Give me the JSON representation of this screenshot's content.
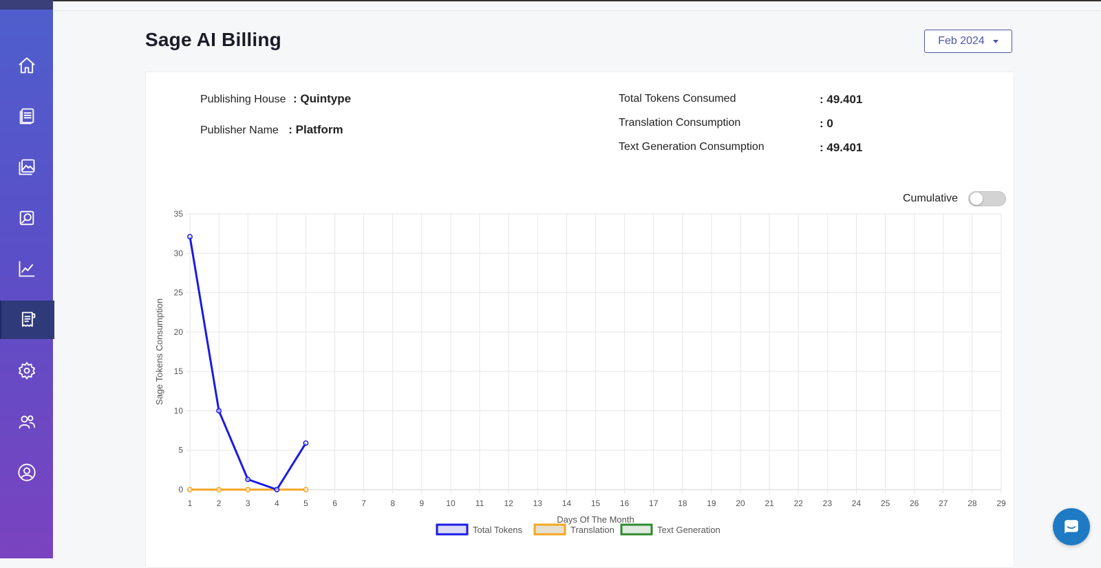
{
  "page": {
    "title": "Sage AI Billing"
  },
  "month_selector": {
    "value": "Feb 2024"
  },
  "sidebar": {
    "items": [
      {
        "name": "home",
        "icon": "home-icon"
      },
      {
        "name": "stories",
        "icon": "stories-icon"
      },
      {
        "name": "media",
        "icon": "image-icon"
      },
      {
        "name": "media-search",
        "icon": "media-search-icon"
      },
      {
        "name": "analytics",
        "icon": "line-chart-icon"
      },
      {
        "name": "billing",
        "icon": "receipt-icon",
        "active": true
      },
      {
        "name": "settings",
        "icon": "gear-icon"
      },
      {
        "name": "users",
        "icon": "users-icon"
      },
      {
        "name": "profile",
        "icon": "user-circle-icon"
      }
    ]
  },
  "info": {
    "publishing_house_label": "Publishing House",
    "publishing_house_value": ": Quintype",
    "publisher_name_label": "Publisher Name",
    "publisher_name_value": ": Platform",
    "total_tokens_label": "Total Tokens Consumed",
    "total_tokens_value": ": 49.401",
    "translation_label": "Translation Consumption",
    "translation_value": ": 0",
    "text_generation_label": "Text Generation Consumption",
    "text_generation_value": ": 49.401"
  },
  "toggle": {
    "label": "Cumulative",
    "on": false
  },
  "chart_data": {
    "type": "line",
    "x": [
      1,
      2,
      3,
      4,
      5,
      6,
      7,
      8,
      9,
      10,
      11,
      12,
      13,
      14,
      15,
      16,
      17,
      18,
      19,
      20,
      21,
      22,
      23,
      24,
      25,
      26,
      27,
      28,
      29
    ],
    "xlabel": "Days Of The Month",
    "ylabel": "Sage Tokens Consumption",
    "ylim": [
      0,
      35
    ],
    "yticks": [
      0,
      5,
      10,
      15,
      20,
      25,
      30,
      35
    ],
    "grid": true,
    "legend_position": "bottom",
    "series": [
      {
        "name": "Total Tokens",
        "color": "#1a1ae6",
        "x": [
          1,
          2,
          3,
          4,
          5
        ],
        "values": [
          32.1,
          10,
          1.3,
          0,
          5.9
        ]
      },
      {
        "name": "Translation",
        "color": "#f5a623",
        "x": [
          1,
          2,
          3,
          4,
          5
        ],
        "values": [
          0,
          0,
          0,
          0,
          0
        ]
      },
      {
        "name": "Text Generation",
        "color": "#2e8b2e",
        "x": [],
        "values": []
      }
    ]
  },
  "chat": {
    "icon": "chat-icon"
  }
}
